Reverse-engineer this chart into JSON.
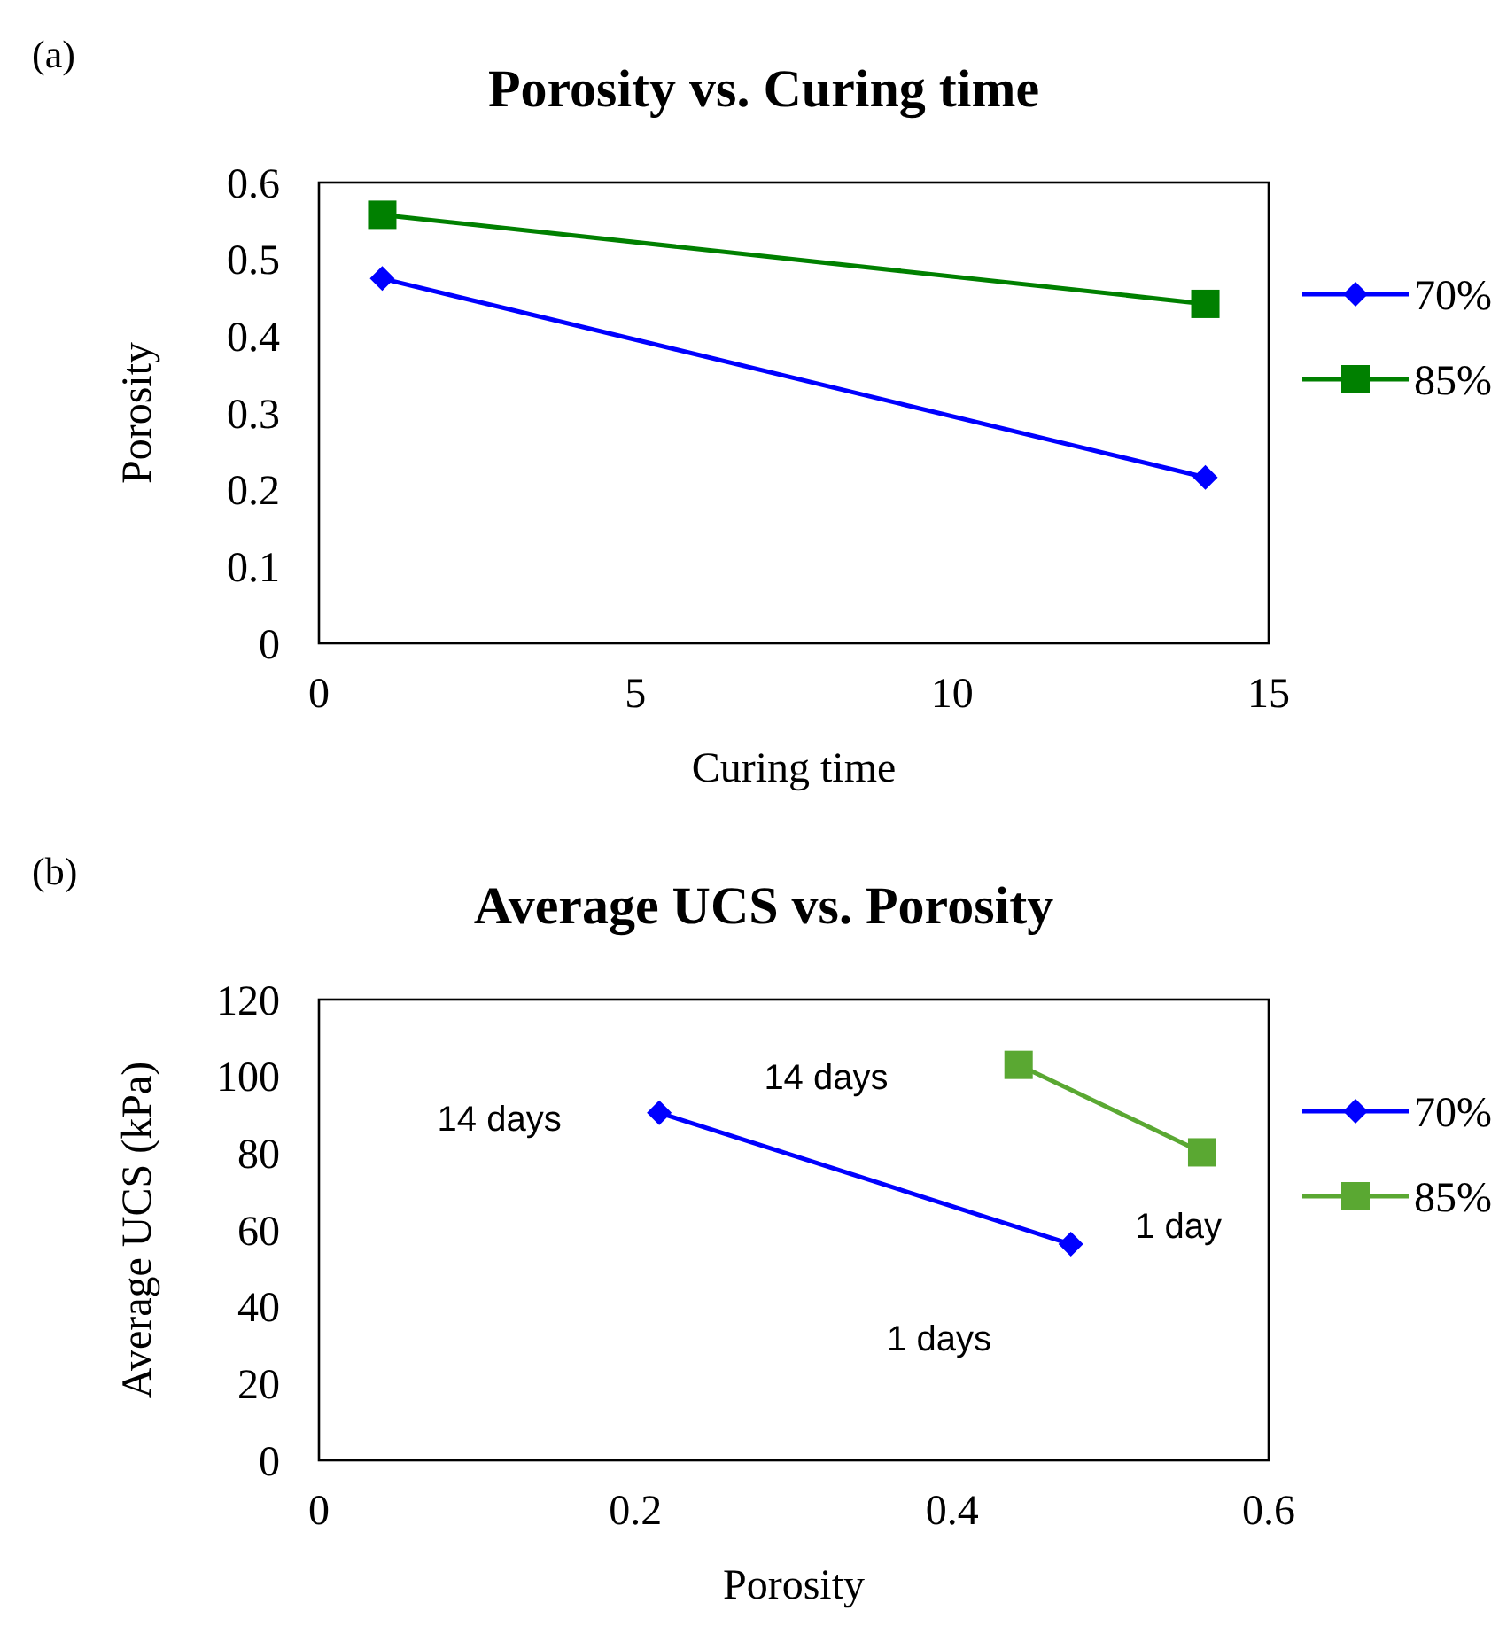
{
  "chart_data": [
    {
      "type": "line",
      "title": "Porosity vs. Curing time",
      "xlabel": "Curing time",
      "ylabel": "Porosity",
      "annotations": [
        "(a)"
      ],
      "xlim": [
        0,
        15
      ],
      "xticks": [
        0,
        5,
        10,
        15
      ],
      "ylim": [
        0,
        0.6
      ],
      "yticks": [
        0,
        0.1,
        0.2,
        0.3,
        0.4,
        0.5,
        0.6
      ],
      "legend": "right",
      "grid": false,
      "series": [
        {
          "name": "70%",
          "color": "#0000ff",
          "marker": "diamond",
          "x": [
            1,
            14
          ],
          "values": [
            0.475,
            0.216
          ]
        },
        {
          "name": "85%",
          "color": "#008000",
          "marker": "square",
          "x": [
            1,
            14
          ],
          "values": [
            0.558,
            0.442
          ]
        }
      ]
    },
    {
      "type": "line",
      "title": "Average UCS vs. Porosity",
      "xlabel": "Porosity",
      "ylabel": "Average UCS (kPa)",
      "annotations": [
        "(b)",
        "14 days",
        "14 days",
        "1 day",
        "1 days"
      ],
      "xlim": [
        0,
        0.6
      ],
      "xticks": [
        0,
        0.2,
        0.4,
        0.6
      ],
      "ylim": [
        0,
        120
      ],
      "yticks": [
        0,
        20,
        40,
        60,
        80,
        100,
        120
      ],
      "legend": "right",
      "grid": false,
      "series": [
        {
          "name": "70%",
          "color": "#0000ff",
          "marker": "diamond",
          "x": [
            0.215,
            0.475
          ],
          "values": [
            90.5,
            56.3
          ]
        },
        {
          "name": "85%",
          "color": "#5aa832",
          "marker": "square",
          "x": [
            0.442,
            0.558
          ],
          "values": [
            103,
            80.2
          ]
        }
      ]
    }
  ]
}
